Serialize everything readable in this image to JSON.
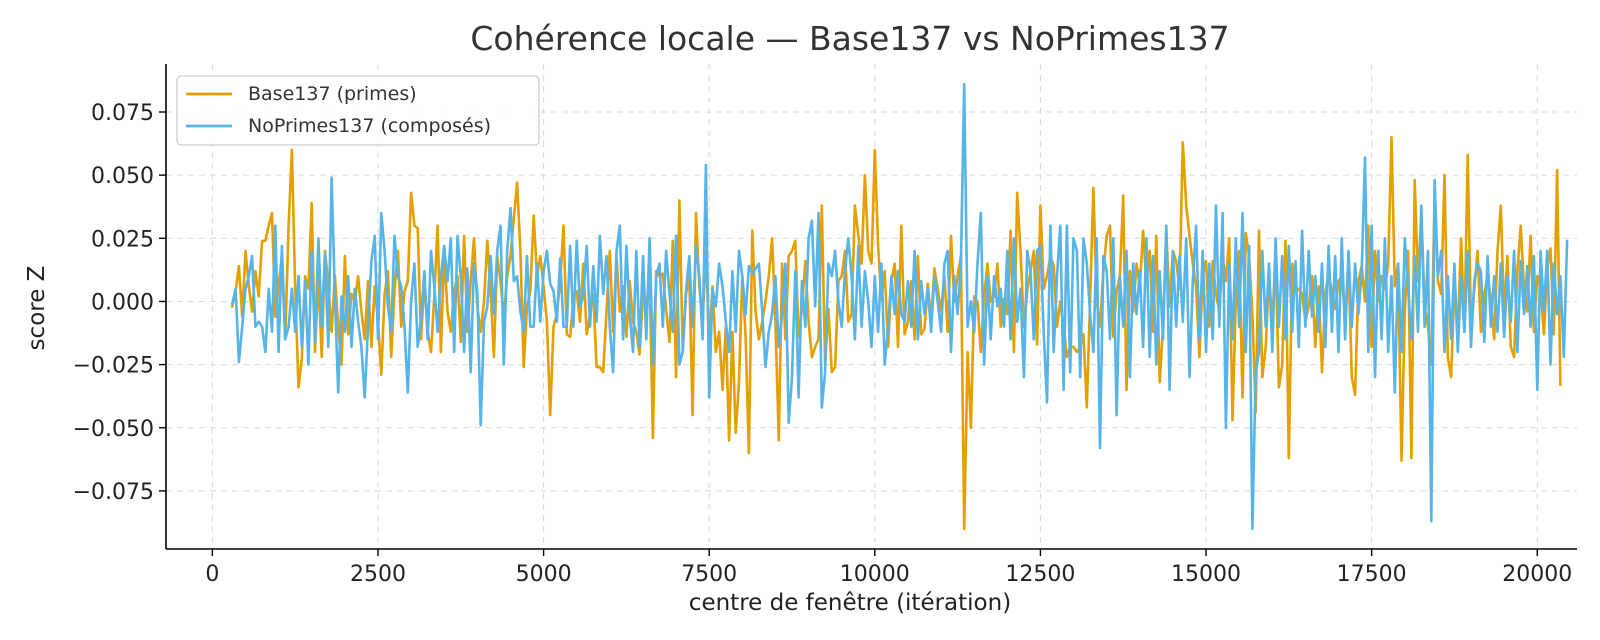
{
  "chart_data": {
    "type": "line",
    "title": "Cohérence locale — Base137 vs NoPrimes137",
    "xlabel": "centre de fenêtre (itération)",
    "ylabel": "score Z",
    "xlim": [
      -700,
      20600
    ],
    "ylim": [
      -0.098,
      0.094
    ],
    "x_ticks": [
      0,
      2500,
      5000,
      7500,
      10000,
      12500,
      15000,
      17500,
      20000
    ],
    "x_tick_labels": [
      "0",
      "2500",
      "5000",
      "7500",
      "10000",
      "12500",
      "15000",
      "17500",
      "20000"
    ],
    "y_ticks": [
      -0.075,
      -0.05,
      -0.025,
      0,
      0.025,
      0.05,
      0.075
    ],
    "y_tick_labels": [
      "−0.075",
      "−0.050",
      "−0.025",
      "0.000",
      "0.025",
      "0.050",
      "0.075"
    ],
    "grid": true,
    "legend_position": "top-left",
    "x_start": 300,
    "x_step": 50,
    "series": [
      {
        "name": "Base137 (primes)",
        "color": "#E69F00",
        "values": [
          -0.002,
          0.004,
          0.014,
          -0.006,
          0.02,
          0.006,
          -0.004,
          0.012,
          0.002,
          0.024,
          0.024,
          0.03,
          0.035,
          -0.006,
          0.006,
          0.018,
          -0.015,
          0.03,
          0.06,
          0.005,
          -0.034,
          -0.023,
          0.01,
          0.005,
          0.039,
          -0.02,
          0.01,
          -0.022,
          0.02,
          0.007,
          -0.012,
          0.01,
          -0.01,
          -0.025,
          0.018,
          -0.013,
          0.003,
          0.0,
          0.01,
          -0.004,
          -0.015,
          0.008,
          -0.018,
          0.006,
          -0.008,
          -0.029,
          0.003,
          0.012,
          -0.022,
          0.004,
          0.02,
          -0.01,
          0.004,
          0.008,
          0.043,
          0.03,
          0.029,
          -0.015,
          0.008,
          -0.012,
          -0.02,
          0.002,
          0.03,
          -0.02,
          0.02,
          -0.004,
          -0.012,
          0.004,
          0.01,
          -0.016,
          0.026,
          -0.012,
          0.008,
          0.025,
          -0.002,
          -0.012,
          0.0,
          0.024,
          0.004,
          -0.022,
          0.018,
          0.008,
          -0.006,
          0.01,
          0.018,
          0.033,
          0.047,
          0.02,
          -0.026,
          -0.002,
          0.004,
          0.034,
          0.01,
          0.018,
          0.006,
          -0.008,
          -0.045,
          -0.01,
          -0.005,
          0.008,
          0.03,
          -0.013,
          -0.014,
          0.001,
          0.004,
          -0.008,
          0.015,
          -0.013,
          -0.005,
          0.003,
          -0.026,
          -0.026,
          -0.028,
          -0.004,
          0.02,
          -0.012,
          0.018,
          -0.004,
          0.006,
          -0.014,
          0.008,
          -0.008,
          -0.012,
          -0.021,
          0.003,
          -0.002,
          0.01,
          -0.054,
          0.012,
          0.01,
          0.011,
          -0.003,
          -0.016,
          0.024,
          -0.03,
          0.04,
          -0.02,
          0.003,
          0.01,
          -0.045,
          0.035,
          0.006,
          -0.008,
          0.02,
          -0.016,
          0.006,
          -0.02,
          -0.012,
          -0.035,
          -0.01,
          -0.055,
          -0.012,
          -0.052,
          -0.032,
          0.01,
          -0.014,
          -0.06,
          0.028,
          -0.004,
          -0.015,
          -0.008,
          0.0,
          0.01,
          0.025,
          -0.008,
          -0.055,
          0.015,
          -0.015,
          0.018,
          0.02,
          0.024,
          -0.014,
          -0.003,
          0.016,
          -0.008,
          -0.022,
          -0.018,
          -0.015,
          0.038,
          -0.025,
          -0.003,
          -0.028,
          -0.026,
          0.008,
          0.01,
          0.02,
          -0.008,
          -0.005,
          0.038,
          0.026,
          0.015,
          0.05,
          0.02,
          0.015,
          0.06,
          0.022,
          0.001,
          0.012,
          -0.018,
          0.008,
          0.015,
          -0.018,
          0.03,
          -0.013,
          -0.008,
          0.008,
          -0.015,
          0.018,
          -0.013,
          -0.011,
          0.007,
          -0.008,
          0.013,
          0.005,
          -0.004,
          0.01,
          -0.012,
          0.026,
          0.0,
          0.01,
          0.018,
          -0.09,
          -0.02,
          -0.05,
          0.002,
          0.0,
          -0.02,
          0.002,
          0.015,
          0.0,
          0.002,
          0.015,
          -0.01,
          0.001,
          -0.005,
          0.028,
          -0.02,
          0.043,
          0.02,
          -0.01,
          0.004,
          0.012,
          0.02,
          -0.017,
          0.038,
          0.005,
          0.01,
          0.018,
          0.014,
          -0.01,
          0.0,
          -0.01,
          -0.022,
          -0.018,
          -0.018,
          -0.02,
          -0.018,
          -0.013,
          -0.042,
          0.001,
          0.045,
          0.0,
          -0.01,
          0.012,
          0.026,
          0.03,
          -0.014,
          0.004,
          0.01,
          0.042,
          -0.035,
          0.012,
          -0.004,
          0.015,
          0.006,
          0.028,
          0.007,
          0.02,
          -0.012,
          0.026,
          -0.032,
          -0.01,
          0.028,
          -0.002,
          0.02,
          0.016,
          0.005,
          0.063,
          0.038,
          0.026,
          0.015,
          0.006,
          -0.022,
          0.01,
          0.016,
          -0.01,
          0.016,
          0.003,
          -0.004,
          0.018,
          0.008,
          0.025,
          -0.047,
          0.0,
          0.02,
          -0.038,
          0.027,
          0.018,
          -0.005,
          -0.044,
          0.028,
          -0.03,
          -0.018,
          0.01,
          -0.008,
          0.018,
          -0.034,
          -0.025,
          0.024,
          -0.062,
          0.015,
          0.004,
          0.005,
          0.003,
          -0.008,
          -0.002,
          0.01,
          -0.018,
          0.006,
          -0.028,
          0.003,
          0.011,
          0.004,
          -0.003,
          0.008,
          0.01,
          -0.006,
          0.015,
          -0.03,
          -0.037,
          0.008,
          0.014,
          0.0,
          0.03,
          -0.018,
          0.02,
          0.0,
          0.01,
          0.005,
          0.015,
          0.065,
          0.006,
          0.015,
          -0.063,
          -0.004,
          0.02,
          -0.062,
          0.048,
          0.008,
          0.035,
          -0.002,
          -0.01,
          -0.025,
          0.042,
          0.008,
          0.003,
          0.05,
          -0.022,
          -0.03,
          0.006,
          -0.012,
          0.025,
          -0.012,
          0.058,
          -0.01,
          0.005,
          0.02,
          -0.012,
          0.003,
          0.01,
          0.001,
          -0.015,
          0.02,
          0.038,
          -0.005,
          0.018,
          -0.018,
          -0.022,
          0.012,
          0.03,
          0.005,
          -0.004,
          0.026,
          -0.012,
          0.01,
          0.005,
          -0.013,
          0.013,
          0.021,
          -0.013,
          0.052,
          -0.033
        ]
      },
      {
        "name": "NoPrimes137 (composés)",
        "color": "#56B4E9",
        "values": [
          -0.001,
          0.005,
          -0.024,
          -0.01,
          0.005,
          0.01,
          0.018,
          -0.01,
          -0.008,
          -0.01,
          -0.02,
          0.005,
          -0.012,
          0.03,
          -0.02,
          0.022,
          -0.015,
          -0.01,
          0.005,
          -0.012,
          0.01,
          -0.018,
          0.008,
          -0.025,
          0.02,
          -0.016,
          0.025,
          -0.01,
          0.019,
          -0.018,
          0.049,
          0.002,
          -0.036,
          0.002,
          -0.012,
          0.01,
          -0.018,
          0.005,
          -0.008,
          -0.018,
          -0.038,
          -0.01,
          0.016,
          0.026,
          -0.015,
          0.035,
          0.02,
          -0.002,
          -0.012,
          0.026,
          0.01,
          0.006,
          -0.01,
          -0.036,
          0.0,
          0.015,
          -0.018,
          -0.007,
          0.012,
          -0.015,
          0.02,
          0.006,
          -0.012,
          0.01,
          0.022,
          0.008,
          0.025,
          -0.02,
          0.026,
          0.01,
          -0.02,
          0.013,
          -0.028,
          0.015,
          0.004,
          -0.049,
          -0.008,
          -0.002,
          0.018,
          -0.005,
          0.02,
          0.03,
          -0.025,
          0.02,
          0.037,
          0.008,
          0.01,
          -0.004,
          -0.012,
          0.018,
          -0.01,
          -0.01,
          0.015,
          -0.008,
          0.012,
          0.02,
          0.007,
          0.004,
          -0.008,
          0.017,
          -0.01,
          -0.01,
          0.022,
          -0.01,
          0.024,
          -0.002,
          0.002,
          0.022,
          -0.01,
          0.014,
          -0.008,
          0.026,
          0.003,
          0.018,
          -0.01,
          -0.028,
          0.02,
          0.03,
          -0.015,
          0.022,
          -0.005,
          -0.02,
          0.02,
          -0.018,
          0.018,
          -0.015,
          0.025,
          -0.025,
          0.01,
          0.015,
          -0.01,
          0.02,
          0.003,
          -0.012,
          0.026,
          -0.025,
          -0.02,
          0.004,
          0.018,
          -0.01,
          0.022,
          0.01,
          -0.015,
          0.054,
          -0.038,
          0.005,
          -0.002,
          0.015,
          0.006,
          -0.008,
          -0.02,
          0.012,
          -0.012,
          0.02,
          0.01,
          -0.005,
          0.014,
          0.011,
          0.013,
          0.015,
          -0.004,
          -0.026,
          -0.012,
          -0.005,
          0.01,
          -0.018,
          -0.005,
          0.015,
          -0.048,
          -0.03,
          0.012,
          -0.038,
          0.008,
          -0.01,
          0.025,
          0.032,
          -0.002,
          0.035,
          -0.042,
          -0.028,
          0.015,
          0.01,
          0.02,
          0.0,
          -0.01,
          0.012,
          0.025,
          0.01,
          -0.015,
          0.022,
          -0.01,
          0.012,
          0.0,
          -0.018,
          0.01,
          -0.012,
          0.015,
          -0.025,
          -0.01,
          0.01,
          -0.005,
          0.012,
          -0.005,
          -0.008,
          0.008,
          -0.01,
          0.02,
          -0.015,
          0.008,
          -0.005,
          0.005,
          -0.012,
          0.01,
          0.0,
          -0.012,
          0.015,
          0.02,
          -0.02,
          0.01,
          -0.005,
          0.015,
          0.086,
          -0.01,
          0.0,
          -0.012,
          0.015,
          0.035,
          -0.025,
          0.01,
          -0.015,
          0.01,
          -0.002,
          0.005,
          -0.01,
          0.02,
          -0.015,
          0.025,
          -0.008,
          0.005,
          -0.03,
          0.02,
          0.012,
          -0.015,
          0.02,
          0.022,
          -0.012,
          -0.04,
          0.03,
          -0.02,
          0.01,
          0.03,
          -0.035,
          0.03,
          -0.028,
          0.025,
          0.02,
          -0.03,
          0.025,
          0.015,
          -0.005,
          -0.02,
          0.025,
          -0.058,
          0.018,
          0.012,
          -0.015,
          0.025,
          -0.045,
          0.01,
          -0.01,
          0.02,
          -0.03,
          0.015,
          -0.005,
          0.012,
          -0.018,
          0.025,
          -0.022,
          0.018,
          -0.025,
          0.012,
          -0.015,
          0.03,
          -0.035,
          0.02,
          -0.01,
          0.018,
          -0.008,
          0.025,
          -0.03,
          0.008,
          0.03,
          -0.015,
          0.02,
          -0.02,
          0.015,
          -0.015,
          0.038,
          -0.01,
          0.035,
          -0.05,
          0.015,
          -0.015,
          0.025,
          -0.01,
          0.035,
          -0.02,
          0.022,
          -0.09,
          -0.028,
          -0.02,
          0.02,
          -0.01,
          0.015,
          -0.02,
          0.025,
          -0.01,
          0.018,
          -0.015,
          0.022,
          -0.012,
          0.016,
          -0.018,
          0.028,
          -0.01,
          0.02,
          -0.006,
          0.01,
          -0.012,
          0.015,
          -0.018,
          0.022,
          -0.012,
          0.018,
          -0.02,
          0.025,
          -0.015,
          0.02,
          -0.01,
          0.015,
          -0.005,
          0.012,
          0.057,
          -0.02,
          0.03,
          -0.03,
          0.02,
          -0.015,
          0.025,
          -0.02,
          0.01,
          -0.036,
          0.015,
          -0.02,
          0.025,
          0.005,
          -0.015,
          0.018,
          -0.012,
          0.038,
          -0.01,
          0.02,
          -0.087,
          0.048,
          0.01,
          0.02,
          -0.02,
          0.01,
          -0.015,
          0.015,
          -0.02,
          0.01,
          -0.012,
          0.02,
          -0.018,
          0.008,
          0.015,
          0.012,
          -0.016,
          0.018,
          -0.01,
          0.01,
          -0.012,
          0.015,
          -0.014,
          0.01,
          -0.008,
          0.02,
          -0.02,
          0.016,
          -0.005,
          0.014,
          -0.01,
          0.018,
          -0.035,
          0.02,
          -0.004,
          0.02,
          -0.025,
          0.015,
          -0.005,
          0.01,
          -0.022,
          0.024
        ]
      }
    ]
  }
}
